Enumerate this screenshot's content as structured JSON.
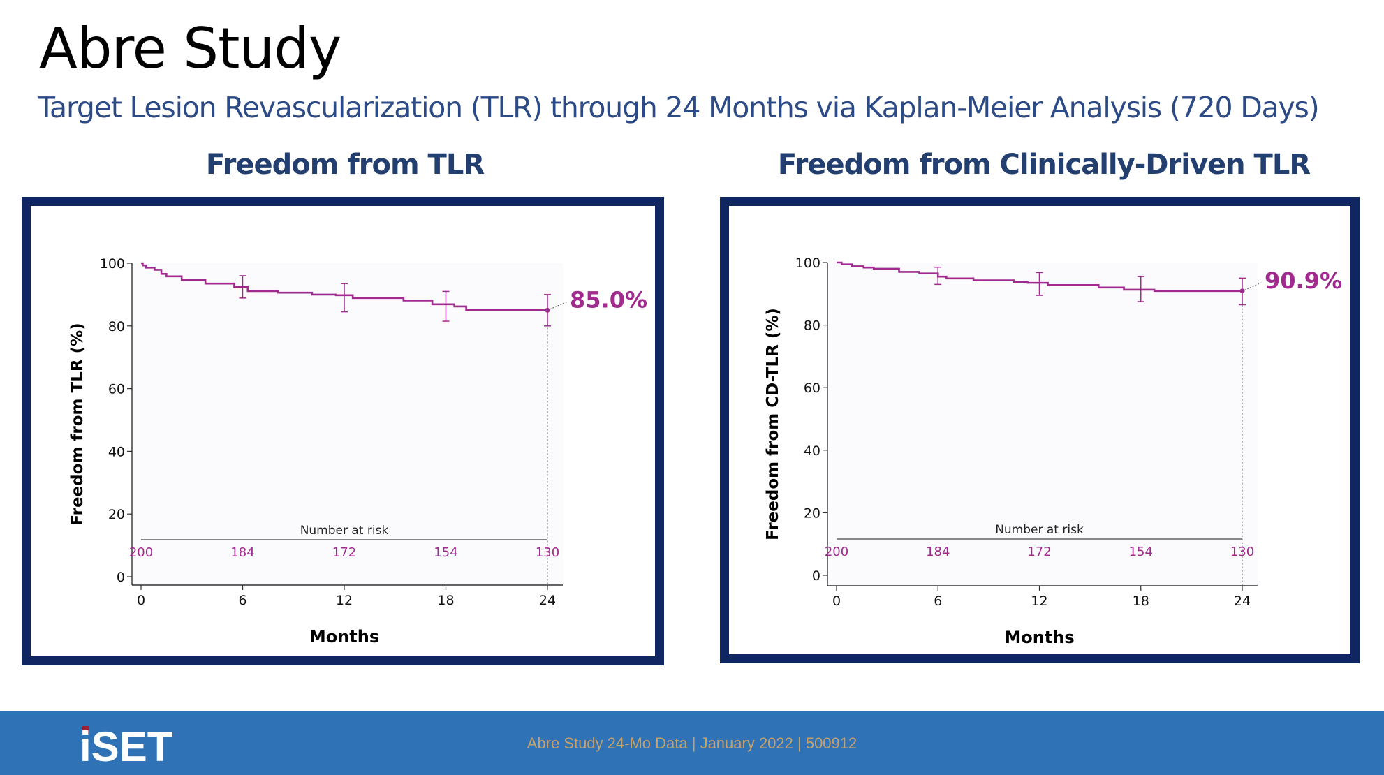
{
  "title": "Abre Study",
  "subtitle": "Target Lesion Revascularization (TLR) through 24 Months via Kaplan-Meier Analysis (720 Days)",
  "footer": {
    "logo_text": "iSET",
    "text": "Abre Study 24-Mo Data | January 2022 | 500912"
  },
  "colors": {
    "curve": "#a02a8e",
    "frame": "#0f2660",
    "heading": "#233f70",
    "footer_bg": "#2f73b6",
    "footer_text": "#c8a06a"
  },
  "chart_data": [
    {
      "type": "line",
      "title": "Freedom from TLR",
      "ylabel": "Freedom from TLR (%)",
      "xlabel": "Months",
      "xlim": [
        0,
        24
      ],
      "ylim": [
        0,
        100
      ],
      "xticks": [
        "0",
        "6",
        "12",
        "18",
        "24"
      ],
      "yticks": [
        "0",
        "20",
        "40",
        "60",
        "80",
        "100"
      ],
      "curve": {
        "x": [
          0,
          0.1,
          0.3,
          0.8,
          1.2,
          1.5,
          2.4,
          3.8,
          5.5,
          6.3,
          8.1,
          10.1,
          11.5,
          12.5,
          15.5,
          17.2,
          18.5,
          19.2,
          24
        ],
        "y": [
          100,
          99.3,
          98.6,
          97.9,
          96.6,
          95.8,
          94.6,
          93.5,
          92.5,
          91.1,
          90.6,
          90.0,
          89.8,
          88.9,
          88.1,
          86.9,
          86.2,
          85.0,
          85.0
        ]
      },
      "confidence_intervals": [
        {
          "x": 6,
          "estimate": 92.5,
          "low": 88.9,
          "high": 96.0
        },
        {
          "x": 12,
          "estimate": 89.0,
          "low": 84.5,
          "high": 93.5
        },
        {
          "x": 18,
          "estimate": 86.2,
          "low": 81.5,
          "high": 91.0
        },
        {
          "x": 24,
          "estimate": 85.0,
          "low": 80.0,
          "high": 90.0
        }
      ],
      "endpoint_label": "85.0%",
      "risk_table": {
        "label": "Number at risk",
        "x": [
          0,
          6,
          12,
          18,
          24
        ],
        "values": [
          "200",
          "184",
          "172",
          "154",
          "130"
        ]
      }
    },
    {
      "type": "line",
      "title": "Freedom from Clinically-Driven TLR",
      "ylabel": "Freedom from CD-TLR (%)",
      "xlabel": "Months",
      "xlim": [
        0,
        24
      ],
      "ylim": [
        0,
        100
      ],
      "xticks": [
        "0",
        "6",
        "12",
        "18",
        "24"
      ],
      "yticks": [
        "0",
        "20",
        "40",
        "60",
        "80",
        "100"
      ],
      "curve": {
        "x": [
          0,
          0.3,
          0.9,
          1.6,
          2.2,
          3.7,
          4.9,
          6.0,
          6.5,
          8.1,
          10.5,
          11.3,
          12.5,
          15.5,
          17.0,
          18.8,
          24
        ],
        "y": [
          100,
          99.4,
          98.8,
          98.4,
          98.0,
          97.0,
          96.5,
          95.5,
          94.9,
          94.3,
          93.8,
          93.5,
          92.8,
          92.0,
          91.3,
          90.9,
          90.9
        ]
      },
      "confidence_intervals": [
        {
          "x": 6,
          "estimate": 95.5,
          "low": 93.0,
          "high": 98.5
        },
        {
          "x": 12,
          "estimate": 93.2,
          "low": 89.5,
          "high": 96.8
        },
        {
          "x": 18,
          "estimate": 91.3,
          "low": 87.5,
          "high": 95.5
        },
        {
          "x": 24,
          "estimate": 90.9,
          "low": 86.5,
          "high": 95.0
        }
      ],
      "endpoint_label": "90.9%",
      "risk_table": {
        "label": "Number at risk",
        "x": [
          0,
          6,
          12,
          18,
          24
        ],
        "values": [
          "200",
          "184",
          "172",
          "154",
          "130"
        ]
      }
    }
  ]
}
